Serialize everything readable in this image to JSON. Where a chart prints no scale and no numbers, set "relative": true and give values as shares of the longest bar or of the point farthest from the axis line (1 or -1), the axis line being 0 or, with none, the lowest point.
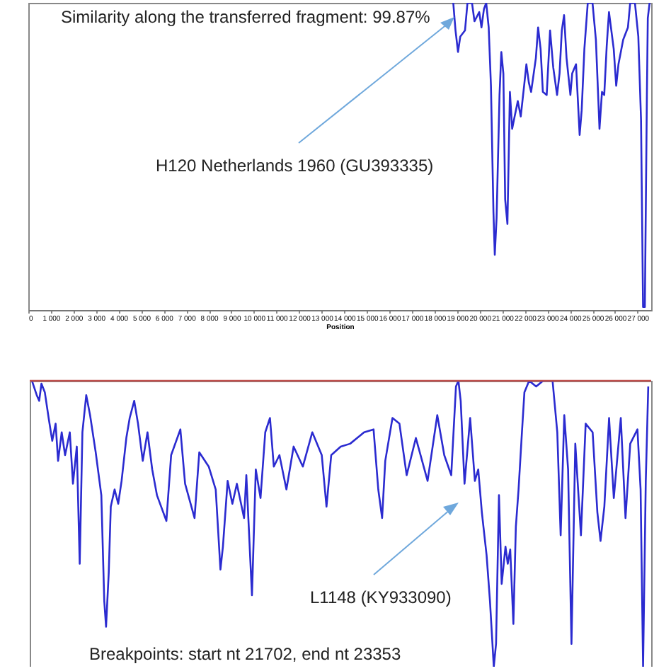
{
  "chart_data": [
    {
      "type": "line",
      "relative": true,
      "xlabel": "Position",
      "tick_labels": "x",
      "xlim": [
        0,
        27600
      ],
      "xticks": [
        0,
        {
          "value": 1000,
          "label": "1 000"
        },
        {
          "value": 2000,
          "label": "2 000"
        },
        {
          "value": 3000,
          "label": "3 000"
        },
        {
          "value": 4000,
          "label": "4 000"
        },
        {
          "value": 5000,
          "label": "5 000"
        },
        {
          "value": 6000,
          "label": "6 000"
        },
        {
          "value": 7000,
          "label": "7 000"
        },
        {
          "value": 8000,
          "label": "8 000"
        },
        {
          "value": 9000,
          "label": "9 000"
        },
        {
          "value": 10000,
          "label": "10 000"
        },
        {
          "value": 11000,
          "label": "11 000"
        },
        {
          "value": 12000,
          "label": "12 000"
        },
        {
          "value": 13000,
          "label": "13 000"
        },
        {
          "value": 14000,
          "label": "14 000"
        },
        {
          "value": 15000,
          "label": "15 000"
        },
        {
          "value": 16000,
          "label": "16 000"
        },
        {
          "value": 17000,
          "label": "17 000"
        },
        {
          "value": 18000,
          "label": "18 000"
        },
        {
          "value": 19000,
          "label": "19 000"
        },
        {
          "value": 20000,
          "label": "20 000"
        },
        {
          "value": 21000,
          "label": "21 000"
        },
        {
          "value": 22000,
          "label": "22 000"
        },
        {
          "value": 23000,
          "label": "23 000"
        },
        {
          "value": 24000,
          "label": "24 000"
        },
        {
          "value": 25000,
          "label": "25 000"
        },
        {
          "value": 26000,
          "label": "26 000"
        },
        {
          "value": 27000,
          "label": "27 000"
        }
      ],
      "annotations": [
        "Similarity along the transferred fragment: 99.87%",
        "H120 Netherlands 1960 (GU393335)"
      ],
      "series": [
        {
          "color": "#2b2bd0",
          "x": [
            18830,
            18930,
            19040,
            19140,
            19350,
            19460,
            19660,
            19770,
            19980,
            20080,
            20190,
            20290,
            20400,
            20500,
            20610,
            20670,
            20750,
            20880,
            20960,
            21050,
            21130,
            21230,
            21340,
            21440,
            21550,
            21690,
            21820,
            21970,
            22070,
            22180,
            22280,
            22490,
            22590,
            22700,
            22800,
            22970,
            23120,
            23260,
            23430,
            23540,
            23640,
            23740,
            23850,
            24020,
            24100,
            24270,
            24430,
            24520,
            24640,
            24790,
            25000,
            25150,
            25310,
            25420,
            25520,
            25630,
            25730,
            25940,
            26050,
            26150,
            26360,
            26570,
            26670,
            26880,
            27030,
            27150,
            27240,
            27320,
            27410,
            27450,
            27530
          ],
          "values": [
            1,
            0.91,
            0.84,
            0.89,
            0.91,
            1,
            1,
            0.94,
            0.97,
            0.92,
            0.98,
            1,
            0.92,
            0.73,
            0.32,
            0.18,
            0.3,
            0.7,
            0.84,
            0.77,
            0.36,
            0.28,
            0.71,
            0.59,
            0.63,
            0.68,
            0.63,
            0.73,
            0.8,
            0.74,
            0.71,
            0.82,
            0.92,
            0.85,
            0.71,
            0.7,
            0.91,
            0.79,
            0.7,
            0.77,
            0.91,
            0.96,
            0.82,
            0.7,
            0.77,
            0.8,
            0.57,
            0.65,
            0.85,
            1,
            1,
            0.88,
            0.59,
            0.71,
            0.7,
            0.86,
            0.97,
            0.85,
            0.73,
            0.8,
            0.88,
            0.92,
            1,
            1,
            0.89,
            0.62,
            0.01,
            0.01,
            0.7,
            0.95,
            1
          ]
        }
      ]
    },
    {
      "type": "line",
      "relative": true,
      "tick_labels": false,
      "xlim": [
        0,
        27600
      ],
      "ref_lines": [
        {
          "axis": "y",
          "value": 1,
          "color": "#c0504d"
        }
      ],
      "annotations": [
        "L1148 (KY933090)",
        "Breakpoints: start nt 21702, end nt  23353"
      ],
      "series": [
        {
          "color": "#2b2bd0",
          "x": [
            100,
            310,
            420,
            520,
            670,
            840,
            1000,
            1150,
            1260,
            1420,
            1570,
            1780,
            1920,
            2090,
            2220,
            2340,
            2510,
            2680,
            2930,
            3180,
            3310,
            3390,
            3510,
            3600,
            3770,
            3930,
            4080,
            4290,
            4440,
            4640,
            4810,
            5020,
            5230,
            5440,
            5650,
            6070,
            6280,
            6690,
            6900,
            7320,
            7530,
            7950,
            8260,
            8470,
            8580,
            8790,
            9000,
            9200,
            9520,
            9620,
            9870,
            10040,
            10250,
            10460,
            10670,
            10840,
            11090,
            11400,
            11720,
            12130,
            12550,
            12970,
            13180,
            13390,
            13810,
            14230,
            14850,
            15270,
            15480,
            15650,
            15790,
            16110,
            16420,
            16740,
            17150,
            17670,
            18100,
            18410,
            18720,
            18930,
            19040,
            19140,
            19310,
            19560,
            19770,
            19920,
            20080,
            20290,
            20440,
            20610,
            20710,
            20840,
            20960,
            21130,
            21230,
            21340,
            21480,
            21590,
            21710,
            21860,
            21970,
            22180,
            22490,
            22800,
            23220,
            23430,
            23580,
            23740,
            23910,
            24060,
            24230,
            24480,
            24690,
            25000,
            25210,
            25350,
            25520,
            25730,
            25940,
            26250,
            26460,
            26670,
            26990,
            27130,
            27240,
            27360,
            27470
          ],
          "values": [
            1,
            0.95,
            0.93,
            0.99,
            0.96,
            0.87,
            0.79,
            0.85,
            0.72,
            0.82,
            0.74,
            0.82,
            0.64,
            0.77,
            0.36,
            0.82,
            0.95,
            0.88,
            0.75,
            0.6,
            0.23,
            0.14,
            0.33,
            0.56,
            0.62,
            0.57,
            0.65,
            0.8,
            0.87,
            0.93,
            0.85,
            0.72,
            0.82,
            0.69,
            0.6,
            0.51,
            0.74,
            0.83,
            0.64,
            0.52,
            0.75,
            0.7,
            0.62,
            0.34,
            0.42,
            0.65,
            0.57,
            0.64,
            0.52,
            0.67,
            0.25,
            0.69,
            0.59,
            0.82,
            0.87,
            0.7,
            0.74,
            0.62,
            0.77,
            0.7,
            0.82,
            0.74,
            0.56,
            0.74,
            0.77,
            0.78,
            0.82,
            0.83,
            0.62,
            0.52,
            0.72,
            0.87,
            0.85,
            0.67,
            0.8,
            0.65,
            0.88,
            0.74,
            0.67,
            0.98,
            1,
            0.93,
            0.64,
            0.87,
            0.65,
            0.69,
            0.54,
            0.39,
            0.23,
            0,
            0.08,
            0.6,
            0.29,
            0.42,
            0.36,
            0.41,
            0.15,
            0.49,
            0.62,
            0.82,
            0.96,
            1,
            0.98,
            1,
            1,
            0.82,
            0.46,
            0.88,
            0.69,
            0.08,
            0.78,
            0.46,
            0.85,
            0.82,
            0.54,
            0.44,
            0.56,
            0.87,
            0.59,
            0.87,
            0.52,
            0.78,
            0.83,
            0.62,
            0,
            0.65,
            0.98
          ]
        }
      ]
    }
  ]
}
